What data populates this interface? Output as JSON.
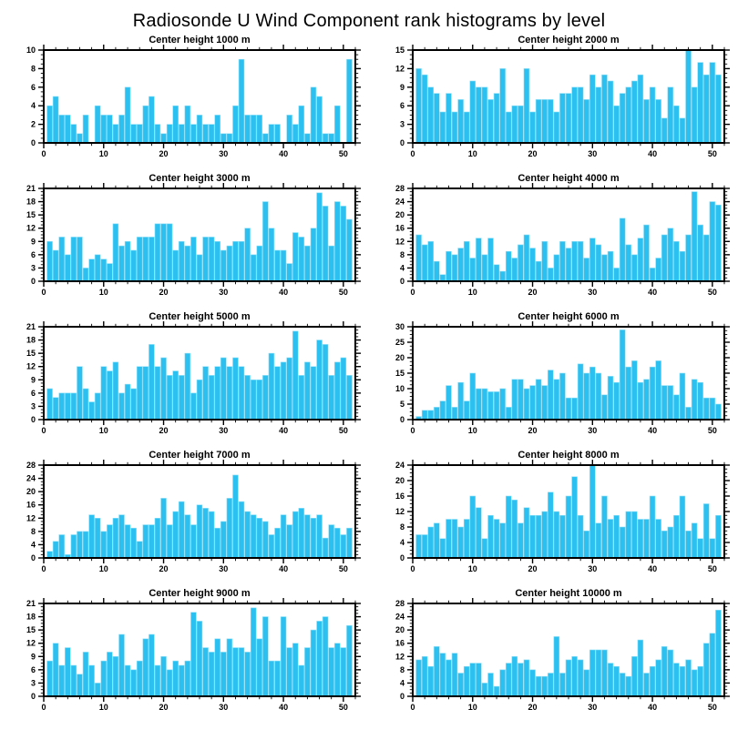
{
  "page_title": "Radiosonde U Wind Component rank histograms by level",
  "colors": {
    "bar": "#2cc0f0",
    "axis": "#000000",
    "background": "#ffffff"
  },
  "chart_data": [
    {
      "type": "bar",
      "title": "Center height 1000 m",
      "xlabel": "",
      "ylabel": "",
      "xticks": [
        0,
        10,
        20,
        30,
        40,
        50
      ],
      "ylim": [
        0,
        10
      ],
      "yticks": [
        0,
        2,
        4,
        6,
        8,
        10
      ],
      "values": [
        4,
        5,
        3,
        3,
        2,
        1,
        3,
        0,
        4,
        3,
        3,
        2,
        3,
        6,
        2,
        2,
        4,
        5,
        2,
        1,
        2,
        4,
        2,
        4,
        2,
        3,
        2,
        2,
        3,
        1,
        1,
        4,
        9,
        3,
        3,
        3,
        1,
        2,
        2,
        0,
        3,
        2,
        4,
        1,
        6,
        5,
        1,
        1,
        4,
        0,
        9
      ]
    },
    {
      "type": "bar",
      "title": "Center height 2000 m",
      "xlabel": "",
      "ylabel": "",
      "xticks": [
        0,
        10,
        20,
        30,
        40,
        50
      ],
      "ylim": [
        0,
        15
      ],
      "yticks": [
        0,
        3,
        6,
        9,
        12,
        15
      ],
      "values": [
        12,
        11,
        9,
        8,
        5,
        8,
        5,
        7,
        5,
        10,
        9,
        9,
        7,
        8,
        12,
        5,
        6,
        6,
        12,
        5,
        7,
        7,
        7,
        5,
        8,
        8,
        9,
        9,
        7,
        11,
        9,
        11,
        10,
        6,
        8,
        9,
        10,
        11,
        7,
        9,
        7,
        4,
        9,
        6,
        4,
        15,
        9,
        13,
        11,
        13,
        11
      ]
    },
    {
      "type": "bar",
      "title": "Center height 3000 m",
      "xlabel": "",
      "ylabel": "",
      "xticks": [
        0,
        10,
        20,
        30,
        40,
        50
      ],
      "ylim": [
        0,
        21
      ],
      "yticks": [
        0,
        3,
        6,
        9,
        12,
        15,
        18,
        21
      ],
      "values": [
        9,
        7,
        10,
        6,
        10,
        10,
        3,
        5,
        6,
        5,
        4,
        13,
        8,
        9,
        7,
        10,
        10,
        10,
        13,
        13,
        13,
        7,
        9,
        8,
        10,
        6,
        10,
        10,
        9,
        7,
        8,
        9,
        9,
        12,
        6,
        8,
        18,
        12,
        7,
        7,
        4,
        11,
        10,
        8,
        12,
        20,
        17,
        8,
        18,
        17,
        14
      ]
    },
    {
      "type": "bar",
      "title": "Center height 4000 m",
      "xlabel": "",
      "ylabel": "",
      "xticks": [
        0,
        10,
        20,
        30,
        40,
        50
      ],
      "ylim": [
        0,
        28
      ],
      "yticks": [
        0,
        4,
        8,
        12,
        16,
        20,
        24,
        28
      ],
      "values": [
        14,
        11,
        12,
        6,
        2,
        9,
        8,
        10,
        12,
        7,
        13,
        8,
        13,
        5,
        3,
        9,
        7,
        11,
        14,
        10,
        6,
        12,
        4,
        8,
        12,
        10,
        12,
        12,
        7,
        13,
        11,
        8,
        9,
        4,
        19,
        11,
        8,
        13,
        17,
        4,
        7,
        14,
        16,
        12,
        9,
        14,
        27,
        17,
        14,
        24,
        23
      ]
    },
    {
      "type": "bar",
      "title": "Center height 5000 m",
      "xlabel": "",
      "ylabel": "",
      "xticks": [
        0,
        10,
        20,
        30,
        40,
        50
      ],
      "ylim": [
        0,
        21
      ],
      "yticks": [
        0,
        3,
        6,
        9,
        12,
        15,
        18,
        21
      ],
      "values": [
        7,
        5,
        6,
        6,
        6,
        12,
        7,
        4,
        6,
        12,
        11,
        13,
        6,
        8,
        7,
        12,
        12,
        17,
        12,
        14,
        10,
        11,
        10,
        15,
        6,
        9,
        12,
        10,
        12,
        14,
        12,
        14,
        12,
        10,
        9,
        9,
        10,
        15,
        12,
        13,
        14,
        20,
        10,
        13,
        12,
        18,
        17,
        10,
        13,
        14,
        10
      ]
    },
    {
      "type": "bar",
      "title": "Center height 6000 m",
      "xlabel": "",
      "ylabel": "",
      "xticks": [
        0,
        10,
        20,
        30,
        40,
        50
      ],
      "ylim": [
        0,
        30
      ],
      "yticks": [
        0,
        5,
        10,
        15,
        20,
        25,
        30
      ],
      "values": [
        1,
        3,
        3,
        4,
        6,
        11,
        4,
        12,
        6,
        15,
        10,
        10,
        9,
        9,
        10,
        4,
        13,
        13,
        10,
        11,
        13,
        11,
        16,
        13,
        15,
        7,
        7,
        18,
        15,
        17,
        15,
        8,
        14,
        12,
        29,
        17,
        19,
        12,
        13,
        17,
        19,
        11,
        11,
        8,
        15,
        4,
        13,
        12,
        7,
        7,
        5
      ]
    },
    {
      "type": "bar",
      "title": "Center height 7000 m",
      "xlabel": "",
      "ylabel": "",
      "xticks": [
        0,
        10,
        20,
        30,
        40,
        50
      ],
      "ylim": [
        0,
        28
      ],
      "yticks": [
        0,
        4,
        8,
        12,
        16,
        20,
        24,
        28
      ],
      "values": [
        2,
        5,
        7,
        1,
        7,
        8,
        8,
        13,
        12,
        8,
        10,
        12,
        13,
        10,
        9,
        5,
        10,
        10,
        12,
        18,
        10,
        14,
        17,
        13,
        10,
        16,
        15,
        14,
        9,
        11,
        18,
        25,
        17,
        14,
        13,
        12,
        11,
        7,
        9,
        13,
        10,
        14,
        15,
        13,
        12,
        13,
        6,
        10,
        9,
        7,
        9
      ]
    },
    {
      "type": "bar",
      "title": "Center height 8000 m",
      "xlabel": "",
      "ylabel": "",
      "xticks": [
        0,
        10,
        20,
        30,
        40,
        50
      ],
      "ylim": [
        0,
        24
      ],
      "yticks": [
        0,
        4,
        8,
        12,
        16,
        20,
        24
      ],
      "values": [
        6,
        6,
        8,
        9,
        5,
        10,
        10,
        8,
        10,
        16,
        13,
        5,
        11,
        10,
        9,
        16,
        15,
        9,
        13,
        11,
        11,
        12,
        17,
        12,
        11,
        16,
        21,
        11,
        7,
        24,
        9,
        16,
        10,
        11,
        8,
        12,
        12,
        10,
        10,
        16,
        10,
        7,
        8,
        11,
        16,
        7,
        9,
        5,
        14,
        5,
        11
      ]
    },
    {
      "type": "bar",
      "title": "Center height 9000 m",
      "xlabel": "",
      "ylabel": "",
      "xticks": [
        0,
        10,
        20,
        30,
        40,
        50
      ],
      "ylim": [
        0,
        21
      ],
      "yticks": [
        0,
        3,
        6,
        9,
        12,
        15,
        18,
        21
      ],
      "values": [
        8,
        12,
        7,
        11,
        7,
        5,
        10,
        7,
        3,
        8,
        10,
        9,
        14,
        7,
        6,
        8,
        13,
        14,
        7,
        9,
        6,
        8,
        7,
        8,
        19,
        17,
        11,
        10,
        13,
        10,
        13,
        11,
        11,
        10,
        20,
        13,
        18,
        8,
        8,
        18,
        11,
        12,
        7,
        11,
        15,
        17,
        18,
        11,
        12,
        11,
        16
      ]
    },
    {
      "type": "bar",
      "title": "Center height 10000 m",
      "xlabel": "",
      "ylabel": "",
      "xticks": [
        0,
        10,
        20,
        30,
        40,
        50
      ],
      "ylim": [
        0,
        28
      ],
      "yticks": [
        0,
        4,
        8,
        12,
        16,
        20,
        24,
        28
      ],
      "values": [
        11,
        12,
        9,
        15,
        13,
        11,
        13,
        7,
        9,
        10,
        10,
        4,
        7,
        3,
        8,
        10,
        12,
        10,
        11,
        8,
        6,
        6,
        7,
        18,
        7,
        11,
        12,
        11,
        8,
        14,
        14,
        14,
        10,
        9,
        7,
        6,
        12,
        17,
        7,
        9,
        11,
        15,
        14,
        10,
        9,
        11,
        8,
        9,
        16,
        19,
        26
      ]
    }
  ]
}
